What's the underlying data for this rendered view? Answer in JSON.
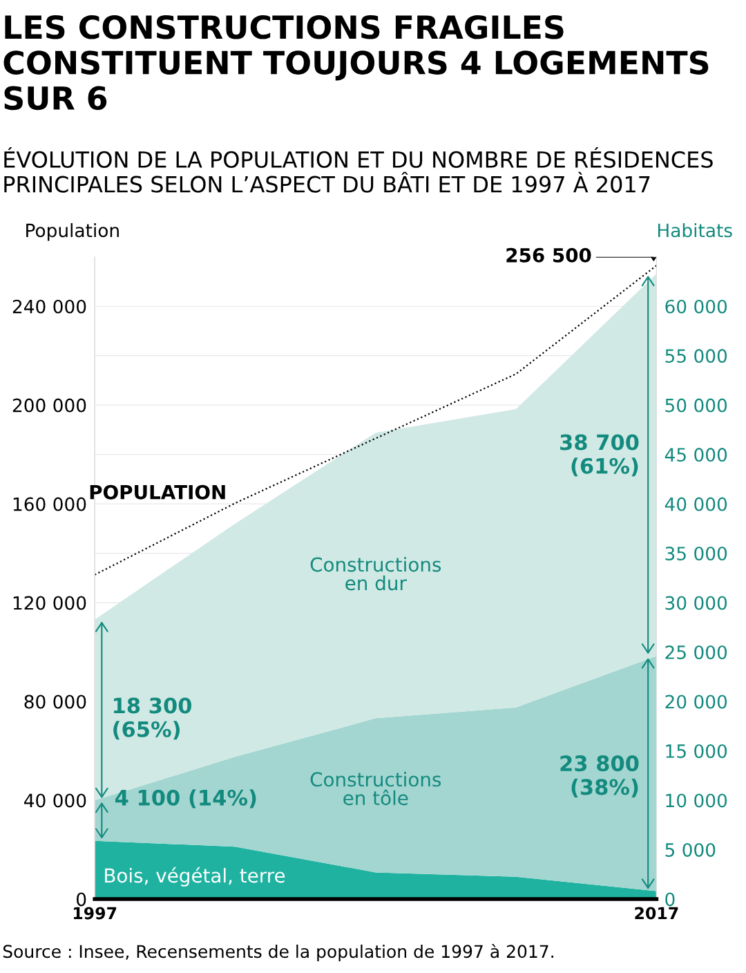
{
  "chart_data": {
    "type": "area",
    "stacked": true,
    "title": "LES CONSTRUCTIONS FRAGILES CONSTITUENT TOUJOURS 4 LOGEMENTS SUR 6",
    "subtitle": "ÉVOLUTION DE LA POPULATION ET DU NOMBRE DE RÉSIDENCES PRINCIPALES SELON L’ASPECT DU BÂTI ET DE 1997 À 2017",
    "ylabel": "Population",
    "y2label": "Habitats",
    "x": [
      1997,
      2002,
      2007,
      2012,
      2017
    ],
    "xlim": [
      1997,
      2017
    ],
    "xticks": [
      1997,
      2017
    ],
    "ylim": [
      0,
      260000
    ],
    "yticks": [
      0,
      {
        "value": 40000,
        "label": "40 000"
      },
      {
        "value": 80000,
        "label": "80 000"
      },
      {
        "value": 120000,
        "label": "120 000"
      },
      {
        "value": 160000,
        "label": "160 000"
      },
      {
        "value": 200000,
        "label": "200 000"
      },
      {
        "value": 240000,
        "label": "240 000"
      }
    ],
    "y2lim": [
      0,
      65000
    ],
    "y2ticks": [
      0,
      {
        "value": 5000,
        "label": "5 000"
      },
      {
        "value": 10000,
        "label": "10 000"
      },
      {
        "value": 15000,
        "label": "15 000"
      },
      {
        "value": 20000,
        "label": "20 000"
      },
      {
        "value": 25000,
        "label": "25 000"
      },
      {
        "value": 30000,
        "label": "30 000"
      },
      {
        "value": 35000,
        "label": "35 000"
      },
      {
        "value": 40000,
        "label": "40 000"
      },
      {
        "value": 45000,
        "label": "45 000"
      },
      {
        "value": 50000,
        "label": "50 000"
      },
      {
        "value": 55000,
        "label": "55 000"
      },
      {
        "value": 60000,
        "label": "60 000"
      }
    ],
    "grid": "y2",
    "legend": false,
    "series": [
      {
        "name": "Bois, végétal, terre",
        "color": "#20b2a0",
        "axis": "y2",
        "values": [
          5900,
          5300,
          2700,
          2250,
          800
        ]
      },
      {
        "name": "Constructions en tôle",
        "color": "#a3d6d1",
        "axis": "y2",
        "values": [
          4100,
          9100,
          15600,
          17150,
          23800
        ]
      },
      {
        "name": "Constructions en dur",
        "color": "#d0e9e4",
        "axis": "y2",
        "values": [
          18300,
          23600,
          28900,
          30200,
          38700
        ]
      },
      {
        "name": "POPULATION",
        "type": "line",
        "color": "#000000",
        "line_style": "dotted",
        "marker": "none",
        "values": [
          131300,
          160300,
          186500,
          212600,
          256500
        ]
      }
    ],
    "annotations": [
      "256 500",
      "18 300 (65%)",
      "4 100 (14%)",
      "38 700 (61%)",
      "23 800 (38%)",
      "Source : Insee, Recensements de la population de 1997 à 2017."
    ]
  }
}
